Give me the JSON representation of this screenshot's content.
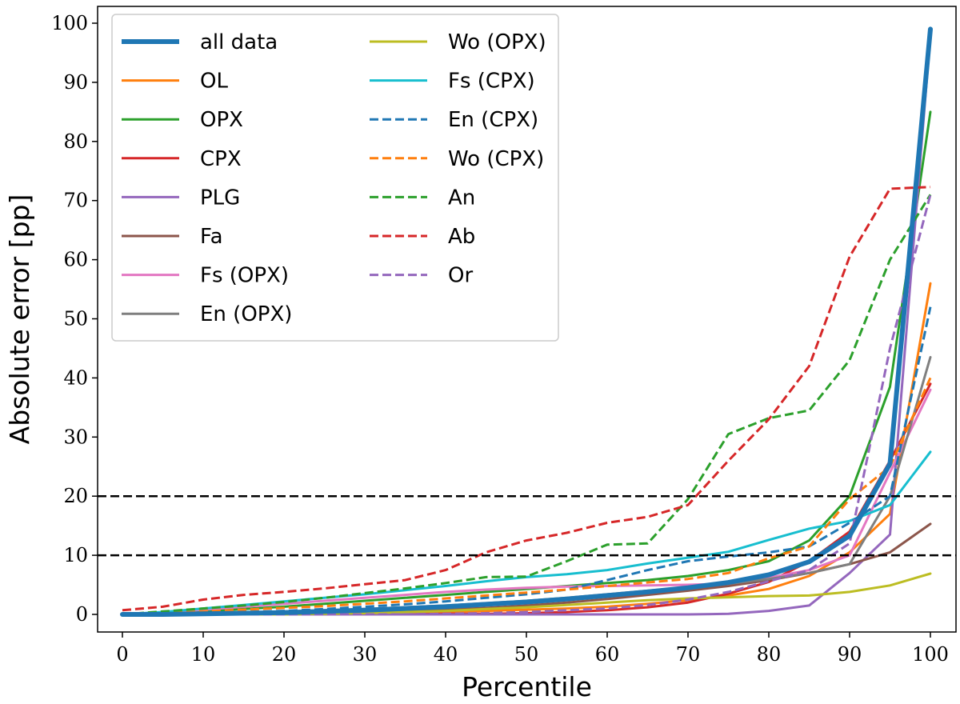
{
  "chart_data": {
    "type": "line",
    "xlabel": "Percentile",
    "ylabel": "Absolute error [pp]",
    "xlim": [
      0,
      100
    ],
    "ylim": [
      0,
      100
    ],
    "xticks": [
      0,
      10,
      20,
      30,
      40,
      50,
      60,
      70,
      80,
      90,
      100
    ],
    "yticks": [
      0,
      10,
      20,
      30,
      40,
      50,
      60,
      70,
      80,
      90,
      100
    ],
    "grid": false,
    "legend_position": "top-left",
    "x": [
      0,
      5,
      10,
      15,
      20,
      25,
      30,
      35,
      40,
      45,
      50,
      55,
      60,
      65,
      70,
      75,
      80,
      85,
      90,
      95,
      100
    ],
    "reference_lines": [
      {
        "y": 10,
        "color": "#000000",
        "style": "dashed"
      },
      {
        "y": 20,
        "color": "#000000",
        "style": "dashed"
      }
    ],
    "series": [
      {
        "name": "OL",
        "color": "#ff7f0e",
        "style": "solid",
        "width": 3,
        "values": [
          0,
          0,
          0,
          0,
          0.1,
          0.1,
          0.2,
          0.3,
          0.4,
          0.6,
          0.8,
          1.0,
          1.3,
          1.8,
          2.4,
          3.2,
          4.3,
          6.5,
          10.5,
          17,
          56
        ]
      },
      {
        "name": "OPX",
        "color": "#2ca02c",
        "style": "solid",
        "width": 3,
        "values": [
          0,
          0.2,
          0.5,
          0.9,
          1.3,
          1.8,
          2.3,
          2.8,
          3.3,
          3.8,
          4.3,
          4.8,
          5.3,
          5.8,
          6.5,
          7.5,
          9,
          12.5,
          20,
          38.5,
          85
        ]
      },
      {
        "name": "CPX",
        "color": "#d62728",
        "style": "solid",
        "width": 3,
        "values": [
          0,
          0,
          0,
          0,
          0,
          0,
          0,
          0,
          0.1,
          0.1,
          0.2,
          0.4,
          0.7,
          1.2,
          2.0,
          3.5,
          5.5,
          9,
          14,
          26,
          39
        ]
      },
      {
        "name": "PLG",
        "color": "#9467bd",
        "style": "solid",
        "width": 3,
        "values": [
          0,
          0,
          0,
          0,
          0,
          0,
          0,
          0,
          0,
          0,
          0,
          0,
          0,
          0,
          0,
          0.1,
          0.6,
          1.5,
          7,
          13.5,
          98
        ]
      },
      {
        "name": "Fa",
        "color": "#8c564b",
        "style": "solid",
        "width": 3,
        "values": [
          0,
          0,
          0,
          0,
          0.1,
          0.2,
          0.4,
          0.6,
          0.8,
          1.1,
          1.5,
          2,
          2.6,
          3.3,
          4.0,
          4.8,
          5.8,
          7,
          8.5,
          10.5,
          15.3
        ]
      },
      {
        "name": "Fs (OPX)",
        "color": "#e377c2",
        "style": "solid",
        "width": 3,
        "values": [
          0,
          0.3,
          0.8,
          1.3,
          1.8,
          2.3,
          2.8,
          3.3,
          3.8,
          4.2,
          4.5,
          4.7,
          4.8,
          4.9,
          5.0,
          5.2,
          6.2,
          7.5,
          10,
          24,
          38
        ]
      },
      {
        "name": "En (OPX)",
        "color": "#7f7f7f",
        "style": "solid",
        "width": 3,
        "values": [
          0,
          0.1,
          0.2,
          0.3,
          0.5,
          0.7,
          0.9,
          1.2,
          1.5,
          1.9,
          2.3,
          2.8,
          3.4,
          4.0,
          4.6,
          5.2,
          6.0,
          7.0,
          8.5,
          20,
          43.5
        ]
      },
      {
        "name": "Wo (OPX)",
        "color": "#bcbd22",
        "style": "solid",
        "width": 3,
        "values": [
          0,
          0,
          0,
          0,
          0,
          0.1,
          0.2,
          0.4,
          0.6,
          0.9,
          1.2,
          1.6,
          2.0,
          2.4,
          2.7,
          2.9,
          3.1,
          3.2,
          3.8,
          4.9,
          6.9
        ]
      },
      {
        "name": "Fs (CPX)",
        "color": "#17becf",
        "style": "solid",
        "width": 3,
        "values": [
          0,
          0.4,
          1.0,
          1.6,
          2.2,
          2.8,
          3.4,
          4.1,
          4.8,
          5.6,
          6.3,
          6.8,
          7.5,
          8.6,
          9.6,
          10.6,
          12.6,
          14.5,
          15.8,
          18.5,
          27.5
        ]
      },
      {
        "name": "En (CPX)",
        "color": "#1f77b4",
        "style": "dashed",
        "width": 3,
        "values": [
          0,
          0.1,
          0.2,
          0.4,
          0.6,
          0.9,
          1.3,
          1.7,
          2.2,
          2.8,
          3.4,
          4.2,
          5.8,
          7.5,
          9.0,
          9.8,
          10.5,
          11.5,
          15.5,
          20,
          52
        ]
      },
      {
        "name": "Wo (CPX)",
        "color": "#ff7f0e",
        "style": "dashed",
        "width": 3,
        "values": [
          0,
          0.2,
          0.5,
          0.8,
          1.1,
          1.4,
          1.8,
          2.2,
          2.7,
          3.2,
          3.7,
          4.2,
          4.8,
          5.4,
          6.0,
          7.0,
          9.5,
          11.5,
          19.5,
          25,
          40
        ]
      },
      {
        "name": "An",
        "color": "#2ca02c",
        "style": "dashed",
        "width": 3,
        "values": [
          0,
          0.5,
          1.0,
          1.5,
          2.1,
          2.8,
          3.6,
          4.4,
          5.3,
          6.3,
          6.4,
          9,
          11.8,
          12.0,
          19.5,
          30.5,
          33.2,
          34.5,
          43,
          60,
          71
        ]
      },
      {
        "name": "Ab",
        "color": "#d62728",
        "style": "dashed",
        "width": 3,
        "values": [
          0.7,
          1.3,
          2.5,
          3.3,
          3.8,
          4.4,
          5.1,
          5.8,
          7.5,
          10.5,
          12.5,
          13.8,
          15.5,
          16.5,
          18.5,
          26,
          33,
          42,
          60.5,
          72,
          72.3
        ]
      },
      {
        "name": "Or",
        "color": "#9467bd",
        "style": "dashed",
        "width": 3,
        "values": [
          0,
          0,
          0,
          0,
          0,
          0,
          0,
          0,
          0.1,
          0.2,
          0.4,
          0.7,
          1.0,
          1.6,
          2.5,
          3.8,
          5.6,
          7.5,
          12,
          45,
          71
        ]
      },
      {
        "name": "all data",
        "color": "#1f77b4",
        "style": "solid",
        "width": 6,
        "values": [
          0,
          0,
          0.1,
          0.2,
          0.3,
          0.5,
          0.7,
          1.0,
          1.3,
          1.7,
          2.1,
          2.6,
          3.2,
          3.8,
          4.5,
          5.4,
          6.7,
          8.9,
          13.3,
          25.5,
          99
        ]
      }
    ],
    "legend_columns": [
      [
        "all data",
        "OL",
        "OPX",
        "CPX",
        "PLG",
        "Fa",
        "Fs (OPX)",
        "En (OPX)"
      ],
      [
        "Wo (OPX)",
        "Fs (CPX)",
        "En (CPX)",
        "Wo (CPX)",
        "An",
        "Ab",
        "Or"
      ]
    ]
  }
}
